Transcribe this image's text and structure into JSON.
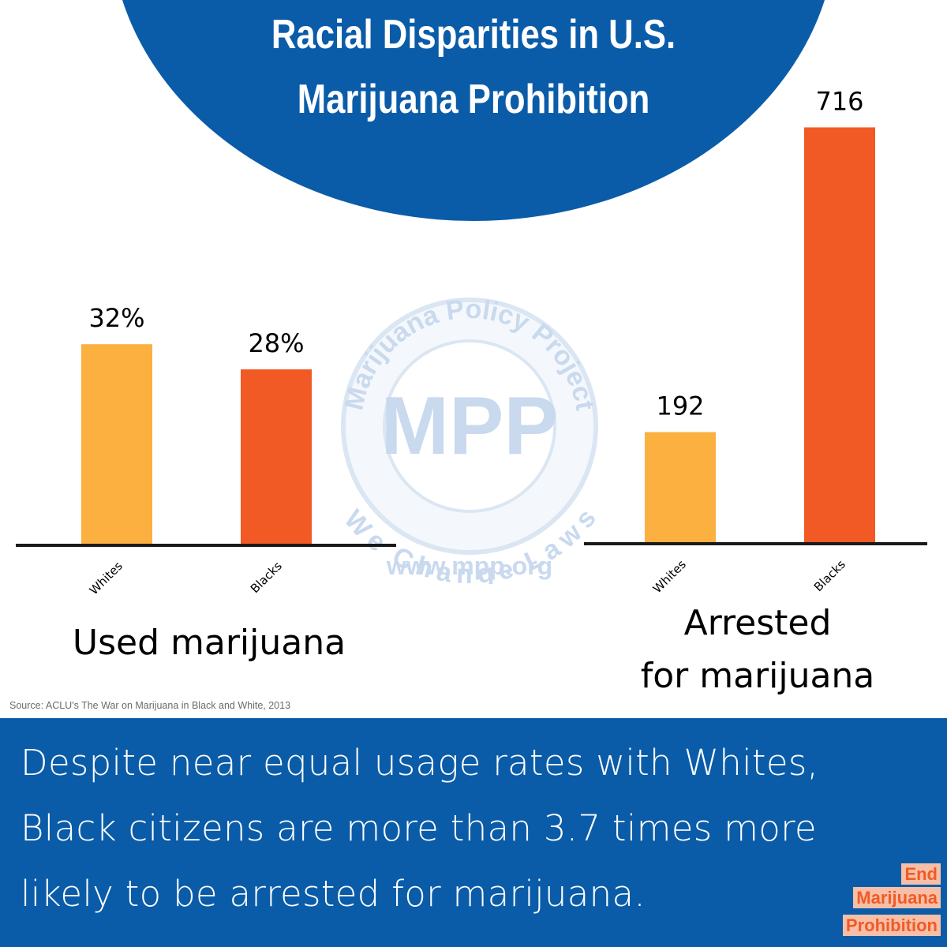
{
  "title_line_1": "Racial Disparities in U.S.",
  "title_line_2": "Marijuana Prohibition",
  "watermark": {
    "arc_top": "Marijuana Policy Project",
    "logo": "MPP",
    "arc_bottom": "We Change Laws",
    "url": "www.mpp.org"
  },
  "chart_data": [
    {
      "type": "bar",
      "title": "Used marijuana",
      "categories": [
        "Whites",
        "Blacks"
      ],
      "values": [
        32,
        28
      ],
      "value_labels": [
        "32%",
        "28%"
      ],
      "ylim": [
        0,
        54
      ],
      "grid": false,
      "colors": [
        "#fbb040",
        "#f15a24"
      ]
    },
    {
      "type": "bar",
      "title_line_1": "Arrested",
      "title_line_2": "for marijuana",
      "categories": [
        "Whites",
        "Blacks"
      ],
      "values": [
        192,
        716
      ],
      "value_labels": [
        "192",
        "716"
      ],
      "ylim": [
        0,
        760
      ],
      "grid": false,
      "colors": [
        "#fbb040",
        "#f15a24"
      ]
    }
  ],
  "source": "Source: ACLU's The War on Marijuana in Black and White, 2013",
  "footer": {
    "line_1": "Despite near equal usage rates with Whites,",
    "line_2": "Black citizens are more than 3.7 times more",
    "line_3": "likely to be arrested for marijuana."
  },
  "badge": {
    "line_1": "End",
    "line_2": "Marijuana",
    "line_3": "Prohibition"
  },
  "colors": {
    "brand_blue": "#0a5ca8",
    "orange_light": "#fbb040",
    "orange_dark": "#f15a24",
    "watermark": "#c9d9ee"
  }
}
